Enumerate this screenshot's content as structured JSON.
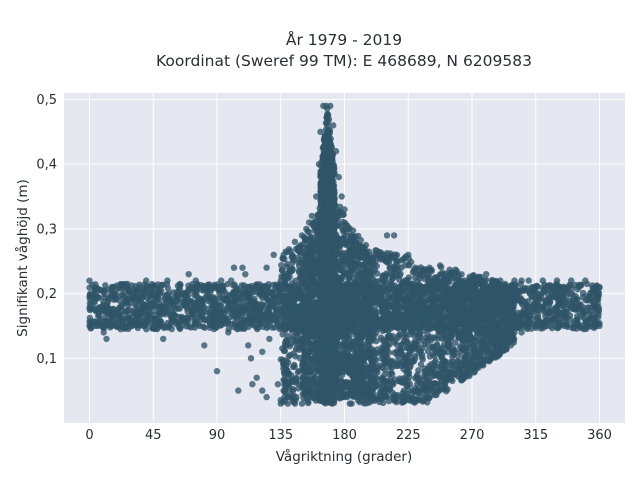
{
  "chart_data": {
    "type": "scatter",
    "title_line1": "År 1979 - 2019",
    "title_line2": "Koordinat (Sweref 99 TM): E 468689, N 6209583",
    "xlabel": "Vågriktning (grader)",
    "ylabel": "Signifikant våghöjd (m)",
    "xlim": [
      -18,
      378
    ],
    "ylim": [
      0.0,
      0.51
    ],
    "x_ticks": [
      0,
      45,
      90,
      135,
      180,
      225,
      270,
      315,
      360
    ],
    "x_tick_labels": [
      "0",
      "45",
      "90",
      "135",
      "180",
      "225",
      "270",
      "315",
      "360"
    ],
    "y_ticks": [
      0.1,
      0.2,
      0.3,
      0.4,
      0.5
    ],
    "y_tick_labels": [
      "0,1",
      "0,2",
      "0,3",
      "0,4",
      "0,5"
    ],
    "grid": true,
    "series": [
      {
        "values_description_points": [
          [
            0,
            0.22
          ],
          [
            0,
            0.15
          ],
          [
            10,
            0.14
          ],
          [
            12,
            0.13
          ],
          [
            20,
            0.16
          ],
          [
            25,
            0.16
          ],
          [
            30,
            0.15
          ],
          [
            38,
            0.15
          ],
          [
            40,
            0.22
          ],
          [
            50,
            0.15
          ],
          [
            52,
            0.13
          ],
          [
            55,
            0.22
          ],
          [
            58,
            0.16
          ],
          [
            65,
            0.15
          ],
          [
            68,
            0.18
          ],
          [
            70,
            0.23
          ],
          [
            75,
            0.22
          ],
          [
            78,
            0.15
          ],
          [
            80,
            0.17
          ],
          [
            81,
            0.12
          ],
          [
            85,
            0.21
          ],
          [
            86,
            0.16
          ],
          [
            88,
            0.15
          ],
          [
            90,
            0.16
          ],
          [
            90,
            0.08
          ],
          [
            93,
            0.22
          ],
          [
            95,
            0.17
          ],
          [
            98,
            0.14
          ],
          [
            100,
            0.22
          ],
          [
            102,
            0.24
          ],
          [
            104,
            0.19
          ],
          [
            105,
            0.05
          ],
          [
            108,
            0.24
          ],
          [
            110,
            0.23
          ],
          [
            112,
            0.12
          ],
          [
            114,
            0.1
          ],
          [
            115,
            0.06
          ],
          [
            117,
            0.18
          ],
          [
            118,
            0.07
          ],
          [
            120,
            0.21
          ],
          [
            122,
            0.11
          ],
          [
            122,
            0.05
          ],
          [
            125,
            0.24
          ],
          [
            125,
            0.04
          ],
          [
            127,
            0.13
          ],
          [
            130,
            0.26
          ],
          [
            132,
            0.17
          ],
          [
            133,
            0.06
          ],
          [
            135,
            0.03
          ],
          [
            137,
            0.26
          ],
          [
            138,
            0.12
          ],
          [
            140,
            0.03
          ],
          [
            143,
            0.26
          ],
          [
            145,
            0.28
          ],
          [
            148,
            0.27
          ],
          [
            150,
            0.29
          ],
          [
            153,
            0.3
          ],
          [
            155,
            0.31
          ],
          [
            157,
            0.32
          ],
          [
            160,
            0.35
          ],
          [
            162,
            0.4
          ],
          [
            163,
            0.45
          ],
          [
            165,
            0.49
          ],
          [
            167,
            0.49
          ],
          [
            170,
            0.49
          ],
          [
            172,
            0.46
          ],
          [
            174,
            0.42
          ],
          [
            176,
            0.38
          ],
          [
            178,
            0.35
          ],
          [
            180,
            0.33
          ],
          [
            183,
            0.3
          ],
          [
            185,
            0.29
          ],
          [
            188,
            0.28
          ],
          [
            190,
            0.27
          ],
          [
            193,
            0.27
          ],
          [
            196,
            0.26
          ],
          [
            200,
            0.25
          ],
          [
            205,
            0.26
          ],
          [
            208,
            0.26
          ],
          [
            210,
            0.29
          ],
          [
            212,
            0.24
          ],
          [
            215,
            0.29
          ],
          [
            218,
            0.25
          ],
          [
            220,
            0.24
          ],
          [
            225,
            0.26
          ],
          [
            230,
            0.24
          ],
          [
            232,
            0.23
          ],
          [
            238,
            0.23
          ],
          [
            240,
            0.24
          ],
          [
            245,
            0.22
          ],
          [
            248,
            0.23
          ],
          [
            250,
            0.22
          ],
          [
            255,
            0.23
          ],
          [
            260,
            0.23
          ],
          [
            265,
            0.22
          ],
          [
            270,
            0.22
          ],
          [
            275,
            0.22
          ],
          [
            280,
            0.23
          ],
          [
            285,
            0.22
          ],
          [
            290,
            0.22
          ],
          [
            300,
            0.22
          ],
          [
            305,
            0.22
          ],
          [
            310,
            0.22
          ],
          [
            320,
            0.22
          ],
          [
            330,
            0.22
          ],
          [
            340,
            0.22
          ],
          [
            350,
            0.22
          ],
          [
            360,
            0.21
          ],
          [
            360,
            0.15
          ],
          [
            345,
            0.15
          ],
          [
            335,
            0.15
          ],
          [
            325,
            0.15
          ],
          [
            315,
            0.15
          ],
          [
            305,
            0.14
          ],
          [
            300,
            0.14
          ],
          [
            295,
            0.13
          ],
          [
            290,
            0.13
          ],
          [
            285,
            0.12
          ],
          [
            280,
            0.12
          ],
          [
            278,
            0.13
          ],
          [
            275,
            0.11
          ],
          [
            270,
            0.11
          ],
          [
            265,
            0.1
          ],
          [
            262,
            0.08
          ],
          [
            258,
            0.09
          ],
          [
            255,
            0.07
          ],
          [
            252,
            0.07
          ],
          [
            248,
            0.07
          ],
          [
            245,
            0.06
          ],
          [
            240,
            0.06
          ],
          [
            235,
            0.05
          ],
          [
            232,
            0.05
          ],
          [
            228,
            0.05
          ],
          [
            225,
            0.05
          ],
          [
            222,
            0.05
          ],
          [
            218,
            0.04
          ],
          [
            215,
            0.04
          ],
          [
            210,
            0.04
          ],
          [
            205,
            0.04
          ],
          [
            200,
            0.04
          ],
          [
            195,
            0.04
          ],
          [
            190,
            0.04
          ],
          [
            185,
            0.03
          ],
          [
            180,
            0.04
          ],
          [
            178,
            0.04
          ],
          [
            175,
            0.04
          ],
          [
            172,
            0.04
          ],
          [
            170,
            0.04
          ],
          [
            168,
            0.04
          ],
          [
            165,
            0.04
          ],
          [
            160,
            0.04
          ],
          [
            155,
            0.04
          ],
          [
            150,
            0.03
          ],
          [
            145,
            0.03
          ],
          [
            140,
            0.04
          ],
          [
            137,
            0.05
          ]
        ]
      }
    ],
    "colors": {
      "marker": "#2f5468",
      "background": "#e5e8f1",
      "grid": "#ffffff"
    }
  }
}
